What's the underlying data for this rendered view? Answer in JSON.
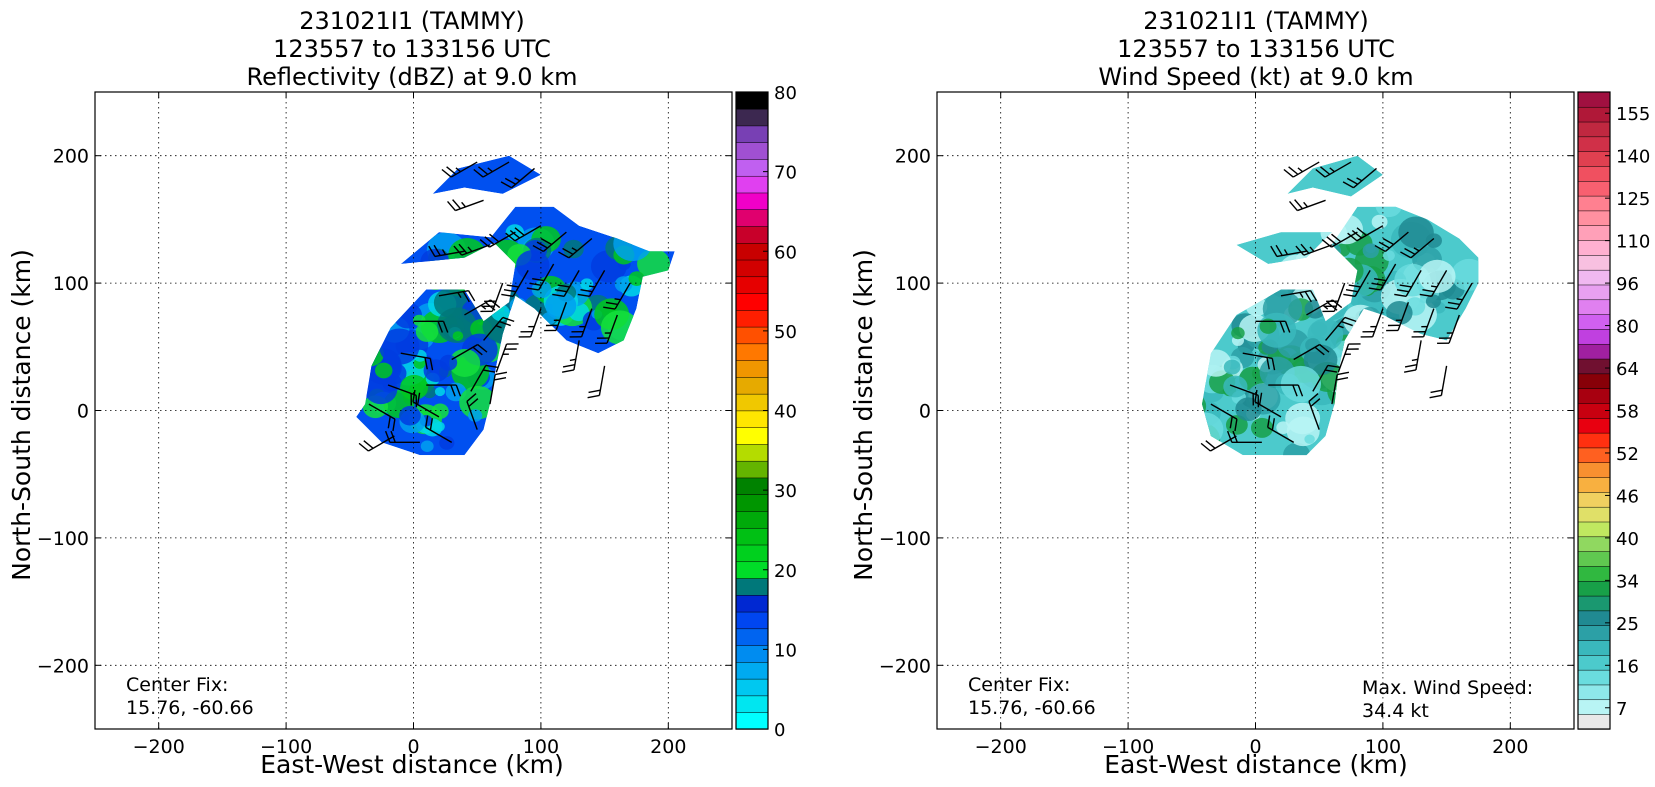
{
  "chart_data": [
    {
      "type": "heatmap",
      "title_lines": [
        "231021I1 (TAMMY)",
        "123557 to 133156 UTC",
        "Reflectivity (dBZ) at 9.0 km"
      ],
      "xlabel": "East-West distance (km)",
      "ylabel": "North-South distance (km)",
      "xlim": [
        -250,
        250
      ],
      "ylim": [
        -250,
        250
      ],
      "xticks": [
        -200,
        -100,
        0,
        100,
        200
      ],
      "yticks": [
        -200,
        -100,
        0,
        100,
        200
      ],
      "x_tick_labels": [
        "−200",
        "−100",
        "0",
        "100",
        "200"
      ],
      "y_tick_labels": [
        "−200",
        "−100",
        "0",
        "100",
        "200"
      ],
      "grid": true,
      "annotation": {
        "line1": "Center Fix:",
        "line2": "15.76, -60.66"
      },
      "colorbar": {
        "min": 0,
        "max": 80,
        "ticks": [
          0,
          10,
          20,
          30,
          40,
          50,
          60,
          70,
          80
        ],
        "tick_labels": [
          "0",
          "10",
          "20",
          "30",
          "40",
          "50",
          "60",
          "70",
          "80"
        ],
        "colors": [
          "#00ffff",
          "#00e6f0",
          "#00c8f0",
          "#00aaf0",
          "#008cf0",
          "#0064f0",
          "#0046f0",
          "#0028d2",
          "#00787a",
          "#00dc28",
          "#00d01e",
          "#00c014",
          "#00aa0a",
          "#009600",
          "#008200",
          "#64b400",
          "#b4dc00",
          "#ffff00",
          "#ffe600",
          "#f0c800",
          "#e6aa00",
          "#f09600",
          "#ff7800",
          "#ff5000",
          "#ff1e00",
          "#ff0000",
          "#e60000",
          "#d20000",
          "#c80000",
          "#c8002a",
          "#e0006e",
          "#f000c8",
          "#e040f0",
          "#c060f0",
          "#a050d2",
          "#7840b4",
          "#3c2850",
          "#000000"
        ]
      },
      "data_regions_kmxy": [
        [
          [
            -38,
            5
          ],
          [
            -33,
            35
          ],
          [
            -18,
            65
          ],
          [
            10,
            95
          ],
          [
            40,
            95
          ],
          [
            55,
            70
          ],
          [
            75,
            85
          ],
          [
            80,
            115
          ],
          [
            60,
            135
          ],
          [
            80,
            160
          ],
          [
            110,
            160
          ],
          [
            130,
            145
          ],
          [
            160,
            135
          ],
          [
            185,
            125
          ],
          [
            205,
            125
          ],
          [
            200,
            110
          ],
          [
            180,
            105
          ],
          [
            175,
            80
          ],
          [
            165,
            55
          ],
          [
            145,
            45
          ],
          [
            120,
            55
          ],
          [
            95,
            80
          ],
          [
            80,
            90
          ],
          [
            70,
            60
          ],
          [
            65,
            35
          ],
          [
            60,
            5
          ],
          [
            55,
            -15
          ],
          [
            40,
            -35
          ],
          [
            5,
            -35
          ],
          [
            -25,
            -25
          ],
          [
            -45,
            -5
          ]
        ],
        [
          [
            -10,
            115
          ],
          [
            20,
            140
          ],
          [
            70,
            135
          ],
          [
            40,
            120
          ]
        ],
        [
          [
            15,
            170
          ],
          [
            35,
            190
          ],
          [
            75,
            200
          ],
          [
            100,
            185
          ],
          [
            70,
            170
          ],
          [
            40,
            175
          ]
        ]
      ],
      "data_colors": [
        "#0050f0",
        "#003ce0",
        "#00a0f0",
        "#00d8e8",
        "#14e03c",
        "#00c81e",
        "#00787a"
      ],
      "wind_barbs": [
        {
          "x": -35,
          "y": 5,
          "speed": 20,
          "dir": 120
        },
        {
          "x": -20,
          "y": 20,
          "speed": 20,
          "dir": 110
        },
        {
          "x": -10,
          "y": 45,
          "speed": 20,
          "dir": 100
        },
        {
          "x": 0,
          "y": 70,
          "speed": 20,
          "dir": 90
        },
        {
          "x": 20,
          "y": 90,
          "speed": 25,
          "dir": 80
        },
        {
          "x": 40,
          "y": 75,
          "speed": 25,
          "dir": 60
        },
        {
          "x": 55,
          "y": 55,
          "speed": 25,
          "dir": 40
        },
        {
          "x": 65,
          "y": 30,
          "speed": 25,
          "dir": 20
        },
        {
          "x": 60,
          "y": 5,
          "speed": 20,
          "dir": 10
        },
        {
          "x": 50,
          "y": -15,
          "speed": 20,
          "dir": 340
        },
        {
          "x": 30,
          "y": -25,
          "speed": 20,
          "dir": 300
        },
        {
          "x": 5,
          "y": -25,
          "speed": 20,
          "dir": 270
        },
        {
          "x": -15,
          "y": -20,
          "speed": 20,
          "dir": 240
        },
        {
          "x": 10,
          "y": 20,
          "speed": 20,
          "dir": 90
        },
        {
          "x": 30,
          "y": 40,
          "speed": 20,
          "dir": 60
        },
        {
          "x": 45,
          "y": 15,
          "speed": 20,
          "dir": 30
        },
        {
          "x": 20,
          "y": -5,
          "speed": 20,
          "dir": 300
        },
        {
          "x": 70,
          "y": 100,
          "speed": 30,
          "dir": 200
        },
        {
          "x": 90,
          "y": 110,
          "speed": 30,
          "dir": 210
        },
        {
          "x": 110,
          "y": 115,
          "speed": 30,
          "dir": 210
        },
        {
          "x": 130,
          "y": 110,
          "speed": 30,
          "dir": 210
        },
        {
          "x": 150,
          "y": 110,
          "speed": 25,
          "dir": 210
        },
        {
          "x": 170,
          "y": 100,
          "speed": 25,
          "dir": 210
        },
        {
          "x": 80,
          "y": 140,
          "speed": 30,
          "dir": 240
        },
        {
          "x": 100,
          "y": 145,
          "speed": 30,
          "dir": 240
        },
        {
          "x": 120,
          "y": 140,
          "speed": 30,
          "dir": 230
        },
        {
          "x": 140,
          "y": 135,
          "speed": 25,
          "dir": 230
        },
        {
          "x": 60,
          "y": 130,
          "speed": 25,
          "dir": 250
        },
        {
          "x": 40,
          "y": 125,
          "speed": 25,
          "dir": 260
        },
        {
          "x": 100,
          "y": 80,
          "speed": 25,
          "dir": 200
        },
        {
          "x": 120,
          "y": 85,
          "speed": 25,
          "dir": 200
        },
        {
          "x": 140,
          "y": 80,
          "speed": 25,
          "dir": 200
        },
        {
          "x": 160,
          "y": 75,
          "speed": 25,
          "dir": 200
        },
        {
          "x": 130,
          "y": 55,
          "speed": 25,
          "dir": 190
        },
        {
          "x": 150,
          "y": 35,
          "speed": 20,
          "dir": 190
        },
        {
          "x": 50,
          "y": 195,
          "speed": 25,
          "dir": 240
        },
        {
          "x": 75,
          "y": 195,
          "speed": 25,
          "dir": 240
        },
        {
          "x": 95,
          "y": 190,
          "speed": 25,
          "dir": 230
        },
        {
          "x": 55,
          "y": 165,
          "speed": 25,
          "dir": 250
        }
      ]
    },
    {
      "type": "heatmap",
      "title_lines": [
        "231021I1 (TAMMY)",
        "123557 to 133156 UTC",
        "Wind Speed (kt) at 9.0 km"
      ],
      "xlabel": "East-West distance (km)",
      "ylabel": "North-South distance (km)",
      "xlim": [
        -250,
        250
      ],
      "ylim": [
        -250,
        250
      ],
      "xticks": [
        -200,
        -100,
        0,
        100,
        200
      ],
      "yticks": [
        -200,
        -100,
        0,
        100,
        200
      ],
      "x_tick_labels": [
        "−200",
        "−100",
        "0",
        "100",
        "200"
      ],
      "y_tick_labels": [
        "−200",
        "−100",
        "0",
        "100",
        "200"
      ],
      "grid": true,
      "annotation": {
        "line1": "Center Fix:",
        "line2": "15.76, -60.66"
      },
      "annotation2": {
        "line1": "Max. Wind Speed:",
        "line2": "34.4 kt"
      },
      "colorbar": {
        "ticks": [
          7,
          16,
          25,
          34,
          40,
          46,
          52,
          58,
          64,
          80,
          96,
          110,
          125,
          140,
          155
        ],
        "tick_labels": [
          "7",
          "16",
          "25",
          "34",
          "40",
          "46",
          "52",
          "58",
          "64",
          "80",
          "96",
          "110",
          "125",
          "140",
          "155"
        ],
        "colors": [
          "#e8e8e8",
          "#b8f4f4",
          "#8ee8ea",
          "#6adcde",
          "#4ccacc",
          "#3ab8bc",
          "#2ca0a6",
          "#208a92",
          "#1a9870",
          "#18a048",
          "#30b840",
          "#60c850",
          "#90d860",
          "#c0e860",
          "#e0e068",
          "#f0d060",
          "#f8b040",
          "#f89030",
          "#ff6020",
          "#ff3010",
          "#e80010",
          "#c80010",
          "#a80010",
          "#880008",
          "#701030",
          "#a020a0",
          "#c040e0",
          "#d060f0",
          "#e080f0",
          "#e8a0f0",
          "#f0b8f0",
          "#f8c0e0",
          "#ffb0d0",
          "#ffa0b8",
          "#ff90a0",
          "#ff8090",
          "#f86070",
          "#f05060",
          "#e04050",
          "#d03048",
          "#c02840",
          "#b01838",
          "#a01040"
        ]
      },
      "data_regions_kmxy": [
        [
          [
            -42,
            5
          ],
          [
            -35,
            45
          ],
          [
            -15,
            75
          ],
          [
            20,
            95
          ],
          [
            45,
            95
          ],
          [
            55,
            70
          ],
          [
            75,
            85
          ],
          [
            80,
            110
          ],
          [
            60,
            130
          ],
          [
            80,
            160
          ],
          [
            110,
            160
          ],
          [
            135,
            150
          ],
          [
            160,
            135
          ],
          [
            175,
            120
          ],
          [
            175,
            100
          ],
          [
            165,
            80
          ],
          [
            150,
            55
          ],
          [
            130,
            60
          ],
          [
            100,
            75
          ],
          [
            85,
            80
          ],
          [
            70,
            55
          ],
          [
            65,
            30
          ],
          [
            62,
            5
          ],
          [
            55,
            -20
          ],
          [
            40,
            -35
          ],
          [
            -10,
            -35
          ],
          [
            -35,
            -20
          ]
        ],
        [
          [
            -15,
            130
          ],
          [
            20,
            140
          ],
          [
            60,
            140
          ],
          [
            40,
            120
          ],
          [
            10,
            115
          ]
        ],
        [
          [
            25,
            170
          ],
          [
            45,
            190
          ],
          [
            80,
            200
          ],
          [
            100,
            185
          ],
          [
            75,
            168
          ],
          [
            45,
            175
          ]
        ]
      ],
      "data_colors": [
        "#4ccacc",
        "#3ab8bc",
        "#6adcde",
        "#2ca0a6",
        "#b8f4f4",
        "#208a92",
        "#18a048"
      ]
    }
  ]
}
